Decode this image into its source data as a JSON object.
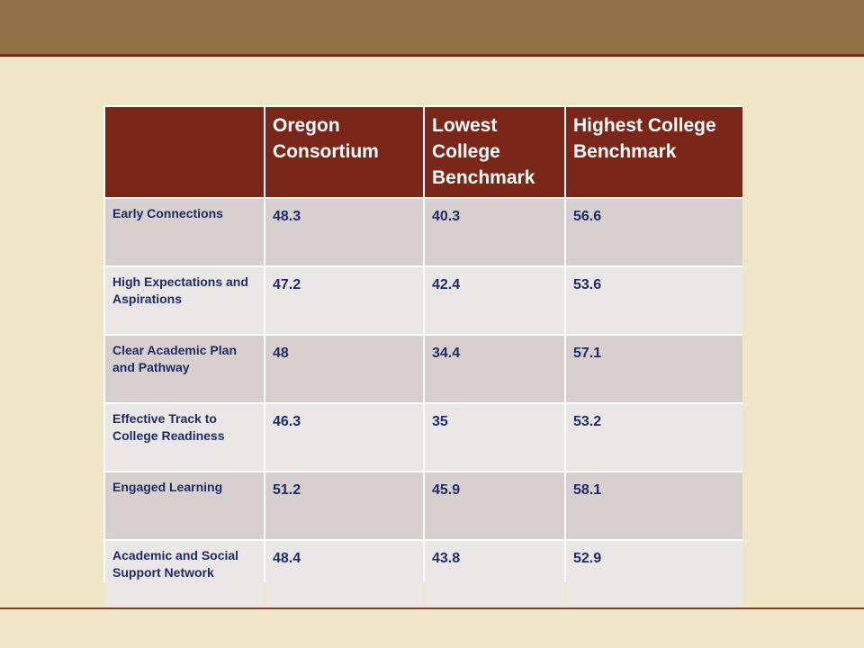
{
  "table": {
    "headers": [
      "",
      "Oregon Consortium",
      "Lowest College Benchmark",
      "Highest College Benchmark"
    ],
    "rows": [
      {
        "label": "Early Connections",
        "oregon": "48.3",
        "lowest": "40.3",
        "highest": "56.6"
      },
      {
        "label": "High Expectations and Aspirations",
        "oregon": "47.2",
        "lowest": "42.4",
        "highest": "53.6"
      },
      {
        "label": "Clear Academic Plan and Pathway",
        "oregon": "48",
        "lowest": "34.4",
        "highest": "57.1"
      },
      {
        "label": "Effective Track to College Readiness",
        "oregon": "46.3",
        "lowest": "35",
        "highest": "53.2"
      },
      {
        "label": "Engaged Learning",
        "oregon": "51.2",
        "lowest": "45.9",
        "highest": "58.1"
      },
      {
        "label": "Academic and Social Support Network",
        "oregon": "48.4",
        "lowest": "43.8",
        "highest": "52.9"
      }
    ]
  },
  "colors": {
    "header_bg": "#7a2619",
    "band": "#8f7346",
    "page_bg": "#f0e6c8",
    "text": "#1f2a6b"
  }
}
